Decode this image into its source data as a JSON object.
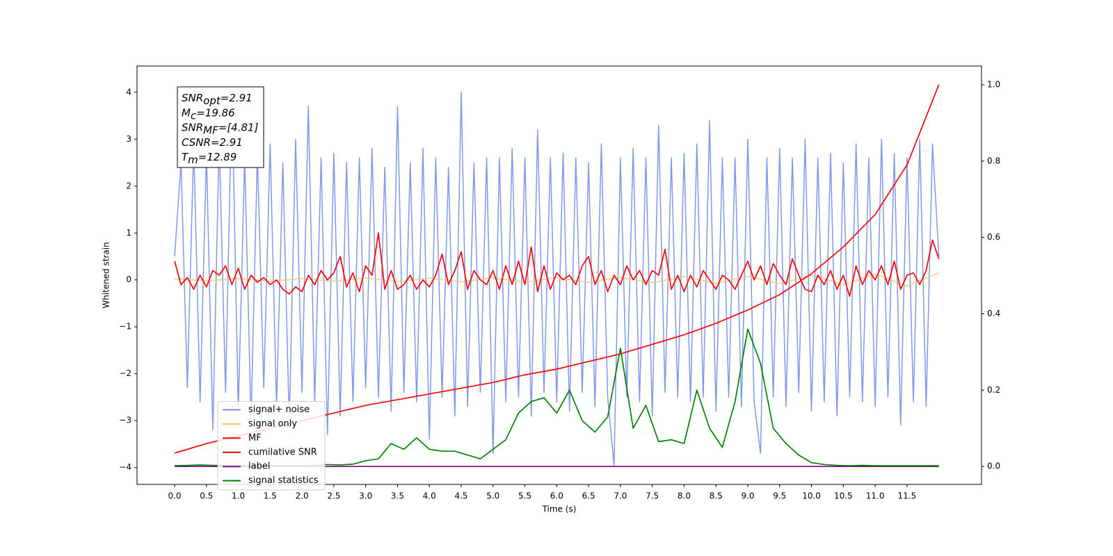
{
  "chart_data": {
    "type": "line",
    "xlabel": "Time (s)",
    "ylabel": "Whitened strain",
    "xlim": [
      -0.59,
      12.67
    ],
    "ylim": [
      -4.36,
      4.56
    ],
    "y2lim": [
      -0.047,
      1.049
    ],
    "xticks": [
      {
        "value": 0,
        "label": "0.0"
      },
      0.5,
      {
        "value": 1,
        "label": "1.0"
      },
      1.5,
      {
        "value": 2,
        "label": "2.0"
      },
      2.5,
      {
        "value": 3,
        "label": "3.0"
      },
      3.5,
      {
        "value": 4,
        "label": "4.0"
      },
      4.5,
      {
        "value": 5,
        "label": "5.0"
      },
      5.5,
      {
        "value": 6,
        "label": "6.0"
      },
      6.5,
      {
        "value": 7,
        "label": "7.0"
      },
      7.5,
      {
        "value": 8,
        "label": "8.0"
      },
      8.5,
      {
        "value": 9,
        "label": "9.0"
      },
      9.5,
      {
        "value": 10,
        "label": "10.0"
      },
      10.5,
      {
        "value": 11,
        "label": "11.0"
      },
      11.5
    ],
    "yticks": [
      {
        "value": -4,
        "label": "−4"
      },
      {
        "value": -3,
        "label": "−3"
      },
      {
        "value": -2,
        "label": "−2"
      },
      {
        "value": -1,
        "label": "−1"
      },
      0,
      1,
      2,
      3,
      4
    ],
    "y2ticks": [
      {
        "value": 0,
        "label": "0.0"
      },
      0.2,
      0.4,
      0.6,
      0.8,
      {
        "value": 1,
        "label": "1.0"
      }
    ],
    "legend": "lower left",
    "annotation": [
      {
        "text": "SNR",
        "sub": "opt",
        "value": "=2.91"
      },
      {
        "text": "M",
        "sub": "c",
        "value": "=19.86"
      },
      {
        "text": "SNR",
        "sub": "MF",
        "value": "=[4.81]"
      },
      {
        "text": "CSNR",
        "value": "=2.91"
      },
      {
        "text": "T",
        "sub": "m",
        "value": "=12.89"
      }
    ],
    "x": [
      0,
      0.1,
      0.2,
      0.3,
      0.4,
      0.5,
      0.6,
      0.7,
      0.8,
      0.9,
      1,
      1.1,
      1.2,
      1.3,
      1.4,
      1.5,
      1.6,
      1.7,
      1.8,
      1.9,
      2,
      2.1,
      2.2,
      2.3,
      2.4,
      2.5,
      2.6,
      2.7,
      2.8,
      2.9,
      3,
      3.1,
      3.2,
      3.3,
      3.4,
      3.5,
      3.6,
      3.7,
      3.8,
      3.9,
      4,
      4.1,
      4.2,
      4.3,
      4.4,
      4.5,
      4.6,
      4.7,
      4.8,
      4.9,
      5,
      5.1,
      5.2,
      5.3,
      5.4,
      5.5,
      5.6,
      5.7,
      5.8,
      5.9,
      6,
      6.1,
      6.2,
      6.3,
      6.4,
      6.5,
      6.6,
      6.7,
      6.8,
      6.9,
      7,
      7.1,
      7.2,
      7.3,
      7.4,
      7.5,
      7.6,
      7.7,
      7.8,
      7.9,
      8,
      8.1,
      8.2,
      8.3,
      8.4,
      8.5,
      8.6,
      8.7,
      8.8,
      8.9,
      9,
      9.1,
      9.2,
      9.3,
      9.4,
      9.5,
      9.6,
      9.7,
      9.8,
      9.9,
      10,
      10.1,
      10.2,
      10.3,
      10.4,
      10.5,
      10.6,
      10.7,
      10.8,
      10.9,
      11,
      11.1,
      11.2,
      11.3,
      11.4,
      11.5,
      11.6,
      11.7,
      11.8,
      11.9,
      12
    ],
    "series": [
      {
        "name": "signal+ noise",
        "color": "#7892e6",
        "values": [
          0.5,
          2.5,
          -2.3,
          2.9,
          -2.6,
          2.7,
          -3.2,
          3.0,
          -2.4,
          4.1,
          -2.8,
          2.6,
          -3.0,
          2.7,
          -2.3,
          2.9,
          -2.7,
          2.5,
          -3.1,
          3.0,
          -2.4,
          3.7,
          -2.6,
          2.6,
          -3.3,
          2.7,
          -2.9,
          2.5,
          -2.6,
          2.6,
          -2.3,
          2.8,
          -2.5,
          2.4,
          -2.8,
          3.7,
          -2.4,
          2.5,
          -2.6,
          2.8,
          -3.4,
          2.6,
          -2.5,
          2.4,
          -2.9,
          4.0,
          -2.7,
          2.5,
          -2.4,
          2.6,
          -3.7,
          2.6,
          -2.6,
          2.8,
          -2.5,
          2.6,
          -2.9,
          3.2,
          -2.4,
          2.6,
          -2.6,
          2.7,
          -2.8,
          2.6,
          -2.4,
          2.5,
          -2.7,
          2.9,
          -2.5,
          -3.95,
          2.6,
          -2.5,
          2.8,
          -2.6,
          2.6,
          -2.9,
          3.3,
          -2.4,
          2.6,
          -2.5,
          2.7,
          -2.6,
          2.9,
          -2.5,
          3.4,
          -2.8,
          2.6,
          -2.5,
          2.6,
          -2.7,
          3.0,
          -2.6,
          -3.7,
          2.6,
          -2.5,
          2.8,
          -2.7,
          2.6,
          -2.4,
          3.0,
          -2.8,
          2.6,
          -2.6,
          2.7,
          -2.9,
          2.5,
          -2.5,
          2.9,
          -2.6,
          2.6,
          -2.7,
          3.0,
          -2.5,
          2.7,
          -3.1,
          2.6,
          -2.6,
          3.0,
          -2.7,
          2.9,
          0.5
        ]
      },
      {
        "name": "signal only",
        "color": "#f5c46e",
        "x": [
          0,
          0.5,
          1,
          1.5,
          2,
          2.5,
          3,
          3.5,
          4,
          4.5,
          5,
          5.5,
          6,
          6.5,
          7,
          7.5,
          8,
          8.5,
          9,
          9.5,
          10,
          10.5,
          11,
          11.5,
          12
        ],
        "values": [
          0.02,
          -0.02,
          0.03,
          -0.03,
          0.03,
          -0.03,
          0.04,
          -0.04,
          0.04,
          -0.04,
          0.05,
          -0.05,
          0.05,
          -0.05,
          0.06,
          -0.06,
          0.07,
          -0.07,
          0.08,
          -0.08,
          0.1,
          -0.1,
          0.12,
          -0.13,
          0.15
        ]
      },
      {
        "name": "MF",
        "color": "#ff0000",
        "values": [
          0.4,
          -0.1,
          0.05,
          -0.2,
          0.1,
          -0.15,
          0.2,
          0.1,
          0.3,
          -0.1,
          0.25,
          -0.2,
          0.1,
          -0.05,
          0.05,
          -0.1,
          0.0,
          -0.2,
          -0.3,
          -0.15,
          -0.25,
          0.1,
          -0.1,
          0.2,
          0.0,
          0.15,
          0.5,
          -0.15,
          0.15,
          -0.25,
          0.3,
          0.1,
          1.0,
          -0.2,
          0.2,
          -0.2,
          -0.1,
          0.1,
          -0.2,
          0.0,
          -0.15,
          0.1,
          0.55,
          -0.1,
          0.2,
          0.6,
          -0.2,
          0.2,
          0.0,
          -0.1,
          0.2,
          -0.2,
          0.3,
          -0.1,
          0.4,
          -0.1,
          0.7,
          -0.25,
          0.3,
          -0.2,
          0.15,
          0.0,
          0.1,
          -0.1,
          0.3,
          0.5,
          -0.1,
          0.2,
          -0.25,
          0.1,
          -0.1,
          0.3,
          0.0,
          0.2,
          -0.1,
          0.2,
          0.1,
          0.65,
          -0.2,
          0.1,
          -0.25,
          0.1,
          -0.15,
          0.2,
          0.0,
          -0.2,
          0.1,
          0.0,
          -0.2,
          0.1,
          0.4,
          0.0,
          0.3,
          -0.1,
          0.35,
          0.1,
          -0.1,
          0.45,
          0.1,
          -0.2,
          -0.25,
          0.1,
          -0.1,
          0.2,
          -0.2,
          0.1,
          -0.35,
          0.3,
          -0.1,
          0.2,
          0.0,
          0.3,
          -0.1,
          0.4,
          -0.2,
          0.1,
          0.15,
          -0.1,
          0.2,
          0.85,
          0.45
        ]
      },
      {
        "name": "cumilative SNR",
        "color": "#ff0000",
        "axis": "y2",
        "x": [
          0,
          0.5,
          1,
          1.5,
          2,
          2.5,
          3,
          3.5,
          4,
          4.5,
          5,
          5.5,
          6,
          6.5,
          7,
          7.5,
          8,
          8.5,
          9,
          9.5,
          10,
          10.5,
          11,
          11.5,
          12
        ],
        "values": [
          0.035,
          0.06,
          0.08,
          0.1,
          0.12,
          0.14,
          0.16,
          0.175,
          0.19,
          0.205,
          0.22,
          0.24,
          0.255,
          0.275,
          0.295,
          0.32,
          0.345,
          0.375,
          0.41,
          0.45,
          0.505,
          0.575,
          0.66,
          0.79,
          1.0
        ]
      },
      {
        "name": "label",
        "color": "#800080",
        "axis": "y2",
        "x": [
          0,
          12
        ],
        "values": [
          0,
          0
        ]
      },
      {
        "name": "signal statistics",
        "color": "#008000",
        "axis": "y2",
        "x": [
          0,
          0.2,
          0.4,
          0.6,
          0.8,
          1,
          1.2,
          1.4,
          1.6,
          1.8,
          2,
          2.2,
          2.4,
          2.6,
          2.8,
          3,
          3.2,
          3.4,
          3.6,
          3.8,
          4,
          4.2,
          4.4,
          4.6,
          4.8,
          5,
          5.2,
          5.4,
          5.6,
          5.8,
          6,
          6.2,
          6.4,
          6.6,
          6.8,
          7,
          7.2,
          7.4,
          7.6,
          7.8,
          8,
          8.2,
          8.4,
          8.6,
          8.8,
          9,
          9.2,
          9.4,
          9.6,
          9.8,
          10,
          10.2,
          10.4,
          10.6,
          10.8,
          11,
          11.2,
          11.4,
          11.6,
          11.8,
          12
        ],
        "values": [
          0.002,
          0.003,
          0.004,
          0.003,
          0.002,
          0.002,
          0.002,
          0.002,
          0.002,
          0.002,
          0.002,
          0.003,
          0.005,
          0.004,
          0.006,
          0.015,
          0.02,
          0.06,
          0.045,
          0.075,
          0.045,
          0.04,
          0.04,
          0.03,
          0.02,
          0.045,
          0.07,
          0.14,
          0.17,
          0.18,
          0.14,
          0.2,
          0.12,
          0.09,
          0.13,
          0.31,
          0.1,
          0.16,
          0.065,
          0.07,
          0.06,
          0.2,
          0.1,
          0.05,
          0.17,
          0.36,
          0.27,
          0.1,
          0.06,
          0.03,
          0.01,
          0.005,
          0.003,
          0.002,
          0.003,
          0.002,
          0.002,
          0.002,
          0.002,
          0.002,
          0.002
        ]
      }
    ]
  }
}
